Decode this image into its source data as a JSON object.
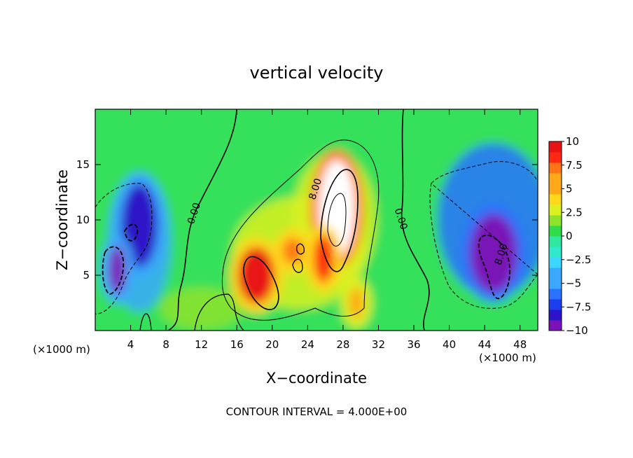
{
  "chart_data": {
    "type": "heatmap",
    "title": "vertical velocity",
    "xlabel": "X−coordinate",
    "ylabel": "Z−coordinate",
    "x_multiplier": "(×1000 m)",
    "xlim": [
      0,
      50
    ],
    "ylim": [
      0,
      20
    ],
    "x_ticks": [
      "4",
      "8",
      "12",
      "16",
      "20",
      "24",
      "28",
      "32",
      "36",
      "40",
      "44",
      "48"
    ],
    "y_ticks": [
      "5",
      "10",
      "15"
    ],
    "colorbar_ticks": [
      "10",
      "7.5",
      "5",
      "2.5",
      "0",
      "−2.5",
      "−5",
      "−7.5",
      "−10"
    ],
    "colorbar_range": [
      -10,
      10
    ],
    "contour_labels": [
      "0.00",
      "8.00",
      "0.00",
      "8.00"
    ],
    "features": [
      {
        "kind": "updraft",
        "x": 27.3,
        "z": 11.0,
        "value": 11.5
      },
      {
        "kind": "updraft",
        "x": 25.8,
        "z": 6.5,
        "value": 7.5
      },
      {
        "kind": "updraft",
        "x": 18.2,
        "z": 5.0,
        "value": 9.0
      },
      {
        "kind": "updraft",
        "x": 22.3,
        "z": 7.2,
        "value": 7.0
      },
      {
        "kind": "updraft",
        "x": 29.5,
        "z": 2.5,
        "value": 6.0
      },
      {
        "kind": "downdraft",
        "x": 45.0,
        "z": 7.0,
        "value": -9.5
      },
      {
        "kind": "downdraft",
        "x": 5.0,
        "z": 9.5,
        "value": -8.0
      },
      {
        "kind": "downdraft",
        "x": 2.5,
        "z": 5.5,
        "value": -9.0
      }
    ],
    "footer": "CONTOUR INTERVAL = 4.000E+00",
    "grid": false,
    "legend": "colorbar-right"
  }
}
